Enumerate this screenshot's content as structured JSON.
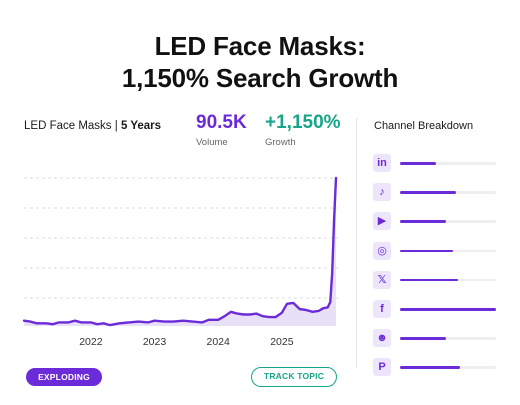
{
  "title": {
    "line1": "LED Face Masks:",
    "line2": "1,150% Search Growth"
  },
  "header": {
    "topic": "LED Face Masks |",
    "period": "5 Years",
    "volume_value": "90.5K",
    "volume_label": "Volume",
    "growth_value": "+1,150%",
    "growth_label": "Growth"
  },
  "buttons": {
    "exploding": "EXPLODING",
    "track": "TRACK TOPIC"
  },
  "channel_breakdown": {
    "title": "Channel Breakdown",
    "channels": [
      {
        "name": "linkedin-icon",
        "glyph": "in",
        "level": 0.38
      },
      {
        "name": "tiktok-icon",
        "glyph": "♪",
        "level": 0.58
      },
      {
        "name": "youtube-icon",
        "glyph": "▶",
        "level": 0.48
      },
      {
        "name": "instagram-icon",
        "glyph": "◎",
        "level": 0.55
      },
      {
        "name": "x-icon",
        "glyph": "𝕏",
        "level": 0.6
      },
      {
        "name": "facebook-icon",
        "glyph": "f",
        "level": 1.0
      },
      {
        "name": "reddit-icon",
        "glyph": "☻",
        "level": 0.48
      },
      {
        "name": "pinterest-icon",
        "glyph": "P",
        "level": 0.63
      }
    ]
  },
  "colors": {
    "accent": "#6c2bd9",
    "growth": "#17a589",
    "area": "#e8e0f7"
  },
  "chart_data": {
    "type": "area",
    "title": "",
    "xlabel": "",
    "ylabel": "",
    "ylim": [
      0,
      100
    ],
    "grid": "horizontal dashed",
    "x_tick_labels": [
      "2022",
      "2023",
      "2024",
      "2025"
    ],
    "x_tick_positions": [
      2022.0,
      2023.0,
      2024.0,
      2025.0
    ],
    "xlim": [
      2020.95,
      2025.85
    ],
    "series": [
      {
        "points": [
          [
            2020.95,
            3.6
          ],
          [
            2021.05,
            3.0
          ],
          [
            2021.15,
            1.8
          ],
          [
            2021.3,
            1.8
          ],
          [
            2021.4,
            1.2
          ],
          [
            2021.5,
            2.4
          ],
          [
            2021.65,
            2.4
          ],
          [
            2021.75,
            3.6
          ],
          [
            2021.85,
            2.4
          ],
          [
            2022.0,
            2.4
          ],
          [
            2022.1,
            1.2
          ],
          [
            2022.2,
            1.8
          ],
          [
            2022.3,
            0.6
          ],
          [
            2022.45,
            1.8
          ],
          [
            2022.6,
            2.4
          ],
          [
            2022.75,
            3.0
          ],
          [
            2022.9,
            2.4
          ],
          [
            2023.0,
            3.6
          ],
          [
            2023.15,
            3.0
          ],
          [
            2023.3,
            3.0
          ],
          [
            2023.45,
            3.6
          ],
          [
            2023.6,
            3.0
          ],
          [
            2023.75,
            2.4
          ],
          [
            2023.85,
            4.2
          ],
          [
            2024.0,
            4.2
          ],
          [
            2024.1,
            6.6
          ],
          [
            2024.2,
            9.6
          ],
          [
            2024.3,
            8.4
          ],
          [
            2024.4,
            7.8
          ],
          [
            2024.5,
            7.8
          ],
          [
            2024.6,
            8.4
          ],
          [
            2024.7,
            6.6
          ],
          [
            2024.8,
            6.0
          ],
          [
            2024.9,
            6.0
          ],
          [
            2025.0,
            9.0
          ],
          [
            2025.08,
            15.0
          ],
          [
            2025.18,
            15.6
          ],
          [
            2025.28,
            11.4
          ],
          [
            2025.38,
            10.8
          ],
          [
            2025.48,
            9.6
          ],
          [
            2025.58,
            10.2
          ],
          [
            2025.65,
            12.0
          ],
          [
            2025.72,
            12.6
          ],
          [
            2025.76,
            16.2
          ],
          [
            2025.79,
            36.0
          ],
          [
            2025.82,
            72.0
          ],
          [
            2025.85,
            100.0
          ]
        ]
      }
    ]
  }
}
